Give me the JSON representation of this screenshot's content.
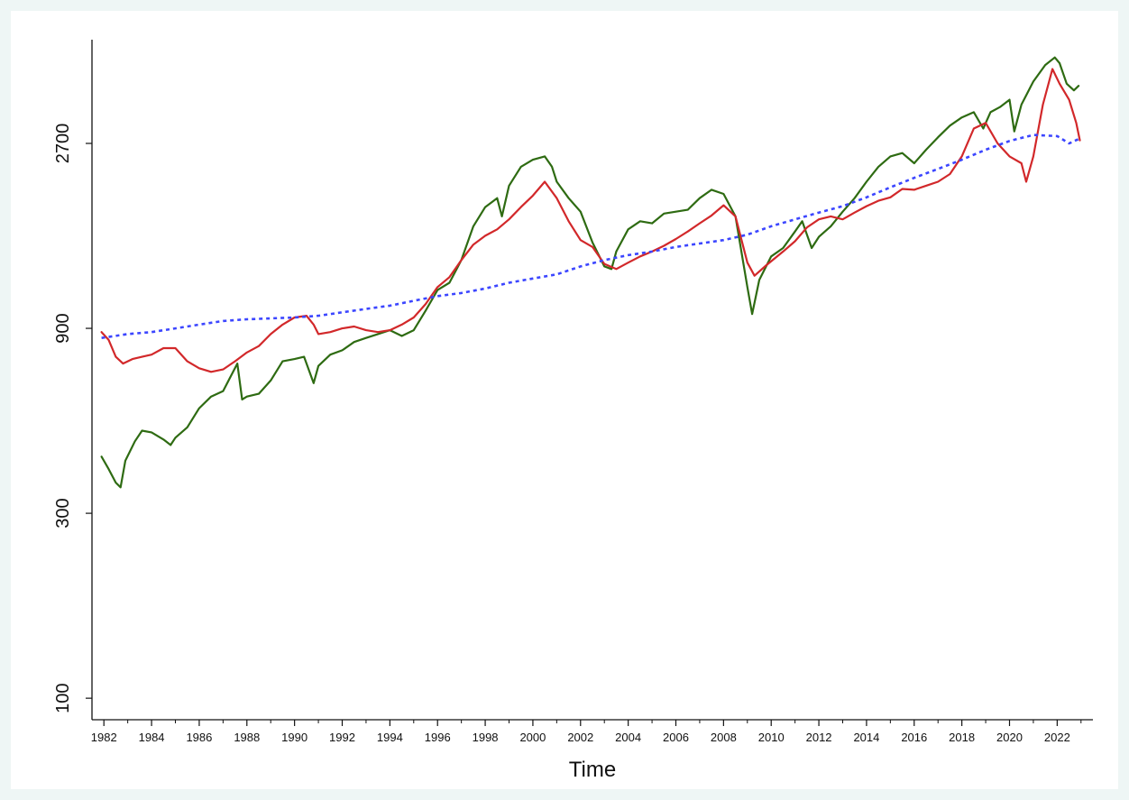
{
  "chart_data": {
    "type": "line",
    "title": "",
    "xlabel": "Time",
    "ylabel": "",
    "y_scale": "log",
    "xlim": [
      1981.5,
      2023.5
    ],
    "ylim": [
      88,
      5000
    ],
    "grid": false,
    "legend": "none",
    "y_ticks": [
      100,
      300,
      900,
      2700
    ],
    "y_tick_labels": [
      "100",
      "300",
      "900",
      "2700"
    ],
    "x_ticks": [
      1982,
      1984,
      1986,
      1988,
      1990,
      1992,
      1994,
      1996,
      1998,
      2000,
      2002,
      2004,
      2006,
      2008,
      2010,
      2012,
      2014,
      2016,
      2018,
      2020,
      2022
    ],
    "x_tick_labels": [
      "1982",
      "1984",
      "1986",
      "1988",
      "1990",
      "1992",
      "1994",
      "1996",
      "1998",
      "2000",
      "2002",
      "2004",
      "2006",
      "2008",
      "2010",
      "2012",
      "2014",
      "2016",
      "2018",
      "2020",
      "2022"
    ],
    "series": [
      {
        "color": "#2e6b12",
        "style": "solid",
        "points": [
          [
            1981.9,
            420
          ],
          [
            1982.2,
            390
          ],
          [
            1982.5,
            360
          ],
          [
            1982.7,
            350
          ],
          [
            1982.9,
            410
          ],
          [
            1983.3,
            460
          ],
          [
            1983.6,
            490
          ],
          [
            1984.0,
            485
          ],
          [
            1984.5,
            465
          ],
          [
            1984.8,
            450
          ],
          [
            1985.0,
            470
          ],
          [
            1985.5,
            500
          ],
          [
            1986.0,
            560
          ],
          [
            1986.5,
            600
          ],
          [
            1987.0,
            620
          ],
          [
            1987.6,
            730
          ],
          [
            1987.8,
            590
          ],
          [
            1988.0,
            600
          ],
          [
            1988.5,
            610
          ],
          [
            1989.0,
            660
          ],
          [
            1989.5,
            740
          ],
          [
            1990.0,
            750
          ],
          [
            1990.4,
            760
          ],
          [
            1990.8,
            650
          ],
          [
            1991.0,
            720
          ],
          [
            1991.5,
            770
          ],
          [
            1992.0,
            790
          ],
          [
            1992.5,
            830
          ],
          [
            1993.0,
            850
          ],
          [
            1993.5,
            870
          ],
          [
            1994.0,
            890
          ],
          [
            1994.5,
            860
          ],
          [
            1995.0,
            890
          ],
          [
            1995.5,
            1000
          ],
          [
            1996.0,
            1130
          ],
          [
            1996.5,
            1180
          ],
          [
            1997.0,
            1350
          ],
          [
            1997.5,
            1650
          ],
          [
            1998.0,
            1850
          ],
          [
            1998.5,
            1950
          ],
          [
            1998.7,
            1750
          ],
          [
            1999.0,
            2100
          ],
          [
            1999.5,
            2350
          ],
          [
            2000.0,
            2450
          ],
          [
            2000.5,
            2500
          ],
          [
            2000.8,
            2350
          ],
          [
            2001.0,
            2150
          ],
          [
            2001.5,
            1950
          ],
          [
            2002.0,
            1800
          ],
          [
            2002.5,
            1500
          ],
          [
            2003.0,
            1300
          ],
          [
            2003.3,
            1280
          ],
          [
            2003.5,
            1420
          ],
          [
            2004.0,
            1620
          ],
          [
            2004.5,
            1700
          ],
          [
            2005.0,
            1680
          ],
          [
            2005.5,
            1780
          ],
          [
            2006.0,
            1800
          ],
          [
            2006.5,
            1820
          ],
          [
            2007.0,
            1950
          ],
          [
            2007.5,
            2050
          ],
          [
            2008.0,
            2000
          ],
          [
            2008.5,
            1750
          ],
          [
            2009.0,
            1150
          ],
          [
            2009.2,
            980
          ],
          [
            2009.5,
            1200
          ],
          [
            2010.0,
            1380
          ],
          [
            2010.5,
            1450
          ],
          [
            2011.0,
            1600
          ],
          [
            2011.3,
            1700
          ],
          [
            2011.7,
            1450
          ],
          [
            2012.0,
            1550
          ],
          [
            2012.5,
            1650
          ],
          [
            2013.0,
            1800
          ],
          [
            2013.5,
            1950
          ],
          [
            2014.0,
            2150
          ],
          [
            2014.5,
            2350
          ],
          [
            2015.0,
            2500
          ],
          [
            2015.5,
            2550
          ],
          [
            2016.0,
            2400
          ],
          [
            2016.5,
            2600
          ],
          [
            2017.0,
            2800
          ],
          [
            2017.5,
            3000
          ],
          [
            2018.0,
            3150
          ],
          [
            2018.5,
            3250
          ],
          [
            2018.9,
            2950
          ],
          [
            2019.2,
            3250
          ],
          [
            2019.6,
            3350
          ],
          [
            2020.0,
            3500
          ],
          [
            2020.2,
            2900
          ],
          [
            2020.5,
            3400
          ],
          [
            2021.0,
            3900
          ],
          [
            2021.5,
            4300
          ],
          [
            2021.9,
            4500
          ],
          [
            2022.1,
            4350
          ],
          [
            2022.4,
            3850
          ],
          [
            2022.7,
            3700
          ],
          [
            2022.9,
            3800
          ]
        ]
      },
      {
        "color": "#d2282a",
        "style": "solid",
        "points": [
          [
            1981.9,
            880
          ],
          [
            1982.2,
            840
          ],
          [
            1982.5,
            760
          ],
          [
            1982.8,
            730
          ],
          [
            1983.2,
            750
          ],
          [
            1983.6,
            760
          ],
          [
            1984.0,
            770
          ],
          [
            1984.5,
            800
          ],
          [
            1985.0,
            800
          ],
          [
            1985.5,
            740
          ],
          [
            1986.0,
            710
          ],
          [
            1986.5,
            695
          ],
          [
            1987.0,
            705
          ],
          [
            1987.5,
            740
          ],
          [
            1988.0,
            780
          ],
          [
            1988.5,
            810
          ],
          [
            1989.0,
            870
          ],
          [
            1989.5,
            920
          ],
          [
            1990.0,
            960
          ],
          [
            1990.5,
            970
          ],
          [
            1990.8,
            920
          ],
          [
            1991.0,
            870
          ],
          [
            1991.5,
            880
          ],
          [
            1992.0,
            900
          ],
          [
            1992.5,
            910
          ],
          [
            1993.0,
            890
          ],
          [
            1993.5,
            880
          ],
          [
            1994.0,
            890
          ],
          [
            1994.5,
            920
          ],
          [
            1995.0,
            960
          ],
          [
            1995.5,
            1040
          ],
          [
            1996.0,
            1150
          ],
          [
            1996.5,
            1220
          ],
          [
            1997.0,
            1350
          ],
          [
            1997.5,
            1480
          ],
          [
            1998.0,
            1560
          ],
          [
            1998.5,
            1620
          ],
          [
            1999.0,
            1720
          ],
          [
            1999.5,
            1850
          ],
          [
            2000.0,
            1980
          ],
          [
            2000.5,
            2150
          ],
          [
            2001.0,
            1950
          ],
          [
            2001.5,
            1700
          ],
          [
            2002.0,
            1520
          ],
          [
            2002.5,
            1460
          ],
          [
            2003.0,
            1320
          ],
          [
            2003.5,
            1280
          ],
          [
            2004.0,
            1330
          ],
          [
            2004.5,
            1380
          ],
          [
            2005.0,
            1420
          ],
          [
            2005.5,
            1470
          ],
          [
            2006.0,
            1530
          ],
          [
            2006.5,
            1600
          ],
          [
            2007.0,
            1680
          ],
          [
            2007.5,
            1760
          ],
          [
            2008.0,
            1870
          ],
          [
            2008.5,
            1750
          ],
          [
            2009.0,
            1330
          ],
          [
            2009.3,
            1230
          ],
          [
            2009.8,
            1310
          ],
          [
            2010.5,
            1420
          ],
          [
            2011.0,
            1510
          ],
          [
            2011.5,
            1640
          ],
          [
            2012.0,
            1720
          ],
          [
            2012.5,
            1750
          ],
          [
            2013.0,
            1720
          ],
          [
            2013.5,
            1790
          ],
          [
            2014.0,
            1860
          ],
          [
            2014.5,
            1920
          ],
          [
            2015.0,
            1960
          ],
          [
            2015.5,
            2060
          ],
          [
            2016.0,
            2050
          ],
          [
            2016.5,
            2100
          ],
          [
            2017.0,
            2150
          ],
          [
            2017.5,
            2250
          ],
          [
            2018.0,
            2500
          ],
          [
            2018.5,
            2950
          ],
          [
            2019.0,
            3050
          ],
          [
            2019.5,
            2700
          ],
          [
            2020.0,
            2500
          ],
          [
            2020.5,
            2400
          ],
          [
            2020.7,
            2150
          ],
          [
            2021.0,
            2500
          ],
          [
            2021.4,
            3400
          ],
          [
            2021.8,
            4200
          ],
          [
            2022.1,
            3850
          ],
          [
            2022.5,
            3500
          ],
          [
            2022.8,
            3050
          ],
          [
            2022.95,
            2750
          ]
        ]
      },
      {
        "color": "#3c46ff",
        "style": "dotted",
        "points": [
          [
            1981.9,
            850
          ],
          [
            1983.0,
            870
          ],
          [
            1984.0,
            880
          ],
          [
            1985.0,
            900
          ],
          [
            1986.0,
            920
          ],
          [
            1987.0,
            940
          ],
          [
            1988.0,
            950
          ],
          [
            1989.0,
            955
          ],
          [
            1990.0,
            960
          ],
          [
            1991.0,
            970
          ],
          [
            1992.0,
            990
          ],
          [
            1993.0,
            1010
          ],
          [
            1994.0,
            1030
          ],
          [
            1995.0,
            1060
          ],
          [
            1996.0,
            1090
          ],
          [
            1997.0,
            1110
          ],
          [
            1998.0,
            1140
          ],
          [
            1999.0,
            1180
          ],
          [
            2000.0,
            1210
          ],
          [
            2001.0,
            1240
          ],
          [
            2002.0,
            1300
          ],
          [
            2003.0,
            1350
          ],
          [
            2004.0,
            1390
          ],
          [
            2005.0,
            1420
          ],
          [
            2006.0,
            1460
          ],
          [
            2007.0,
            1490
          ],
          [
            2008.0,
            1520
          ],
          [
            2009.0,
            1570
          ],
          [
            2010.0,
            1650
          ],
          [
            2011.0,
            1720
          ],
          [
            2012.0,
            1790
          ],
          [
            2013.0,
            1860
          ],
          [
            2014.0,
            1960
          ],
          [
            2015.0,
            2080
          ],
          [
            2016.0,
            2200
          ],
          [
            2017.0,
            2320
          ],
          [
            2018.0,
            2450
          ],
          [
            2019.0,
            2600
          ],
          [
            2020.0,
            2740
          ],
          [
            2021.0,
            2840
          ],
          [
            2022.0,
            2820
          ],
          [
            2022.5,
            2700
          ],
          [
            2022.95,
            2780
          ]
        ]
      }
    ]
  }
}
